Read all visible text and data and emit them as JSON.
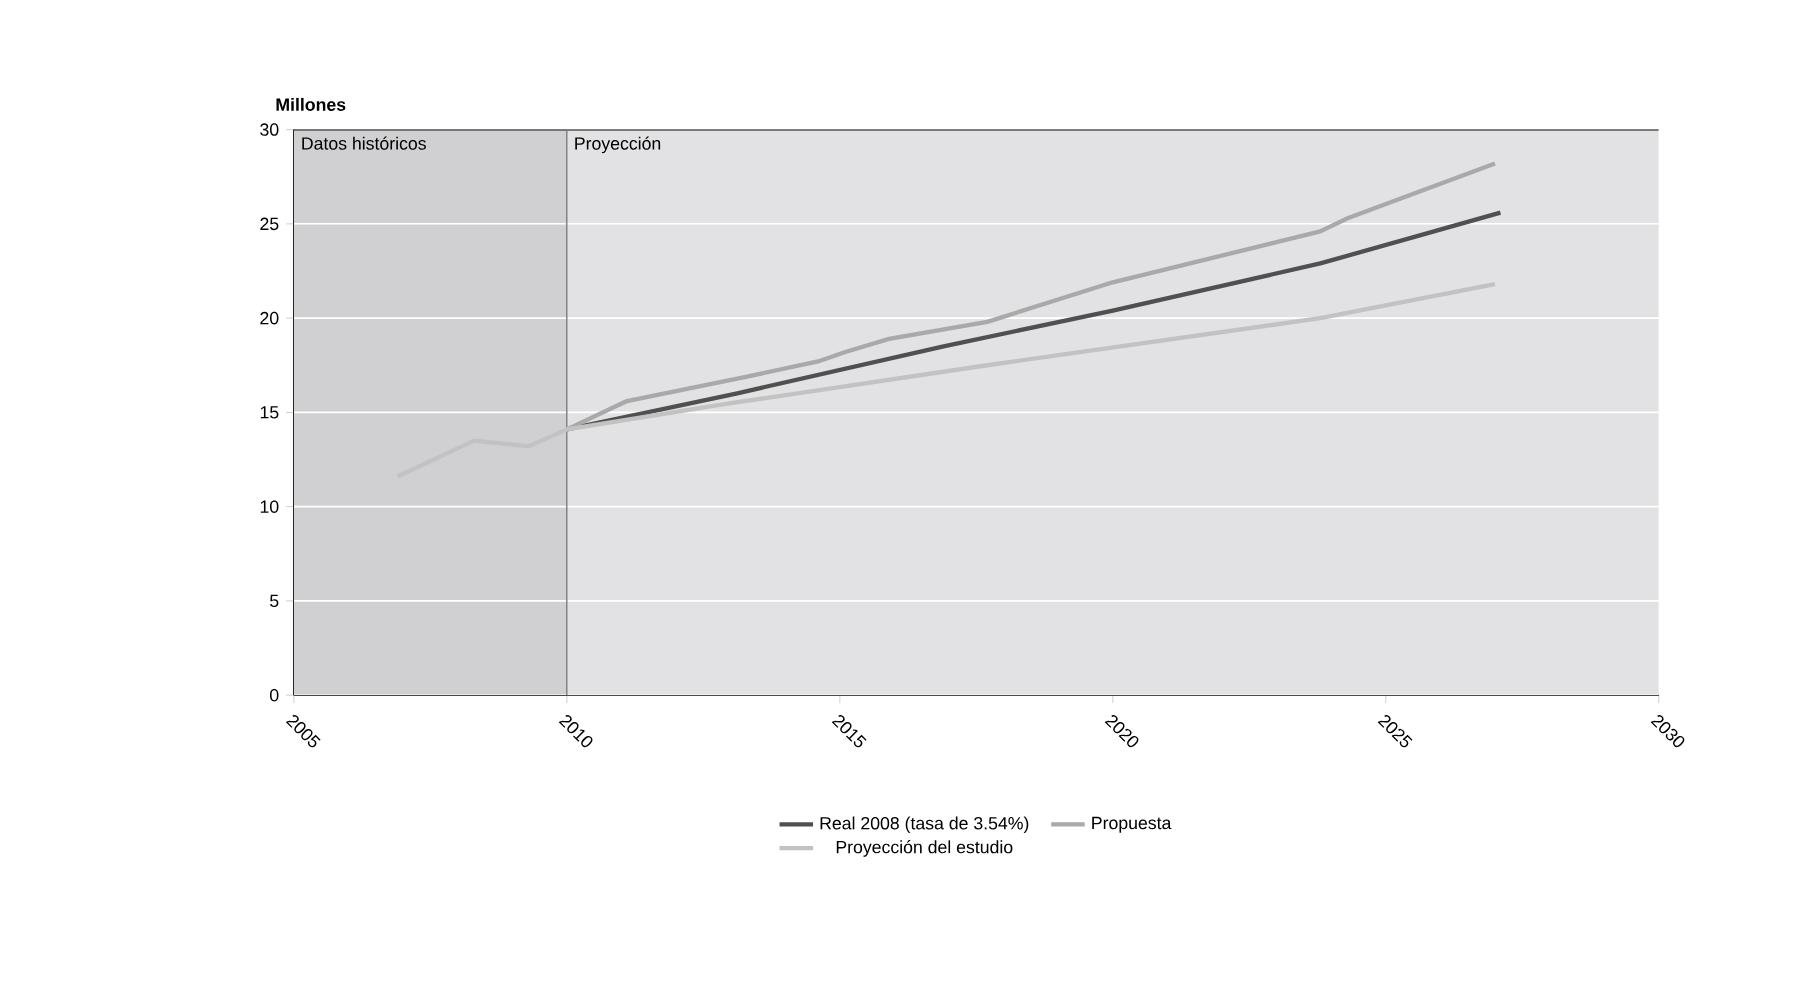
{
  "chart_data": {
    "type": "line",
    "ylabel": "Millones",
    "xlim": [
      2005,
      2030
    ],
    "xticks": [
      2005,
      2010,
      2015,
      2020,
      2025,
      2030
    ],
    "ylim": [
      0,
      30
    ],
    "yticks": [
      0,
      5,
      10,
      15,
      20,
      25,
      30
    ],
    "grid": "y",
    "legend": "bottom",
    "line_style": "solid",
    "marker": "none",
    "bands": [
      {
        "axis": "x",
        "from": 2005,
        "to": 2010,
        "label": "Datos históricos",
        "color": "#d0d0d2"
      },
      {
        "axis": "x",
        "from": 2010,
        "to": 2030,
        "label": "Proyección",
        "color": "#e2e2e4"
      }
    ],
    "ref_lines": [
      {
        "axis": "x",
        "value": 2010,
        "color": "#7a7a7a"
      }
    ],
    "series": [
      {
        "name": "Real 2008 (tasa de 3.54%)",
        "color": "#505050",
        "x": [
          2010,
          2013.1,
          2016.9,
          2020,
          2023.8,
          2027.1
        ],
        "values": [
          14.1,
          16.0,
          18.5,
          20.4,
          22.9,
          25.6
        ]
      },
      {
        "name": "Propuesta",
        "color": "#a9a9a9",
        "x": [
          2010,
          2011.1,
          2013.3,
          2014.6,
          2015.1,
          2015.9,
          2017.7,
          2020,
          2023.8,
          2024.3,
          2027
        ],
        "values": [
          14.1,
          15.6,
          16.9,
          17.7,
          18.2,
          18.9,
          19.8,
          21.9,
          24.6,
          25.3,
          28.2
        ]
      },
      {
        "name": "Proyección del estudio",
        "color": "#c2c2c2",
        "x": [
          2006.9,
          2008.3,
          2009.3,
          2010,
          2012.8,
          2017.7,
          2023.8,
          2027
        ],
        "values": [
          11.6,
          13.5,
          13.2,
          14.1,
          15.4,
          17.5,
          20.0,
          21.8
        ]
      }
    ]
  }
}
